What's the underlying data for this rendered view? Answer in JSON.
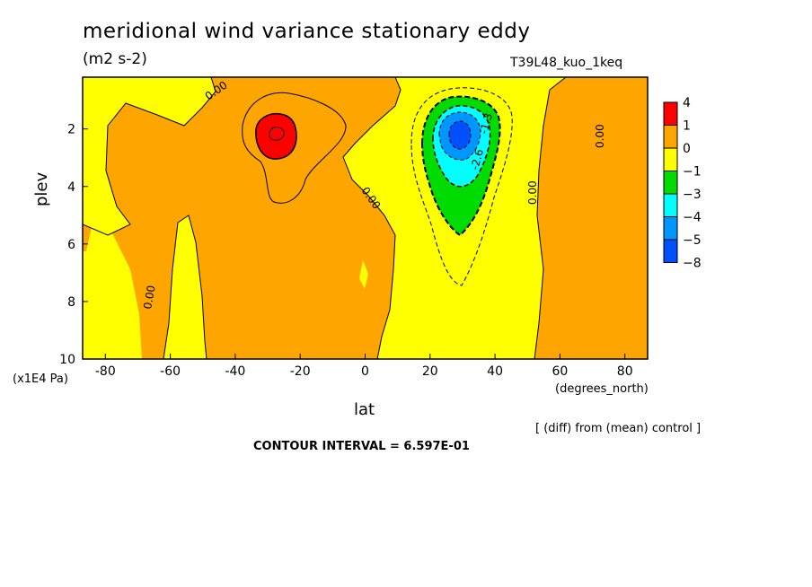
{
  "title": "meridional wind variance  stationary eddy",
  "units": "(m2 s-2)",
  "run_id": "T39L48_kuo_1keq",
  "diff_note": "[ (diff) from (mean) control ]",
  "contour_interval": "CONTOUR INTERVAL = 6.597E-01",
  "chart_data": {
    "type": "heatmap",
    "title": "meridional wind variance  stationary eddy",
    "subtitle": "(m2 s-2)",
    "xlabel": "lat",
    "xunit": "(degrees_north)",
    "ylabel": "plev",
    "yunit": "(x1E4 Pa)",
    "xlim": [
      -87,
      87
    ],
    "ylim": [
      10,
      0.2
    ],
    "x_ticks": [
      -80,
      -60,
      -40,
      -20,
      0,
      20,
      40,
      60,
      80
    ],
    "y_ticks": [
      2,
      4,
      6,
      8,
      10
    ],
    "grid": false,
    "legend_position": "right",
    "colorbar": {
      "bounds": [
        4,
        1,
        0,
        -1,
        -3,
        -4,
        -5,
        -8
      ],
      "colors": [
        "#ff0000",
        "#ffa500",
        "#ffff00",
        "#00dc00",
        "#00ffff",
        "#0096ff",
        "#0050ff"
      ]
    },
    "contour_labels": [
      "0.00",
      "0.00",
      "0.00",
      "0.00",
      "0.00",
      "-1.3",
      "-2.6"
    ],
    "features": [
      {
        "label": "positive maximum",
        "lat": -29,
        "plev": 2.0,
        "value": 4
      },
      {
        "label": "negative minimum",
        "lat": 30,
        "plev": 2.3,
        "value": -8
      }
    ]
  }
}
